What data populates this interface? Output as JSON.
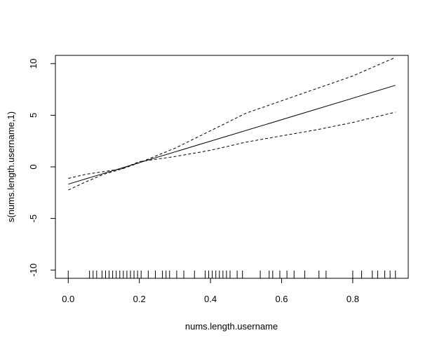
{
  "chart_data": {
    "type": "line",
    "title": "",
    "xlabel": "nums.length.username",
    "ylabel": "s(nums.length.username,1)",
    "xlim": [
      -0.036,
      0.956
    ],
    "ylim": [
      -10.8,
      10.8
    ],
    "xticks": [
      0.0,
      0.2,
      0.4,
      0.6,
      0.8
    ],
    "xtick_labels": [
      "0.0",
      "0.2",
      "0.4",
      "0.6",
      "0.8"
    ],
    "yticks": [
      -10,
      -5,
      0,
      5,
      10
    ],
    "ytick_labels": [
      "-10",
      "-5",
      "0",
      "5",
      "10"
    ],
    "grid": false,
    "legend": "none",
    "series": [
      {
        "style": "solid",
        "x": [
          0.0,
          0.92
        ],
        "y": [
          -1.68,
          7.9
        ]
      },
      {
        "style": "dashed",
        "x": [
          0.0,
          0.05,
          0.1,
          0.15,
          0.2,
          0.3,
          0.4,
          0.5,
          0.6,
          0.7,
          0.8,
          0.92
        ],
        "y": [
          -1.12,
          -0.72,
          -0.46,
          -0.2,
          0.5,
          1.0,
          1.6,
          2.4,
          3.0,
          3.6,
          4.3,
          5.3
        ]
      },
      {
        "style": "dashed",
        "x": [
          0.0,
          0.05,
          0.1,
          0.15,
          0.2,
          0.3,
          0.4,
          0.5,
          0.6,
          0.7,
          0.8,
          0.92
        ],
        "y": [
          -2.25,
          -1.45,
          -0.72,
          -0.22,
          0.4,
          1.8,
          3.5,
          5.2,
          6.4,
          7.6,
          8.8,
          10.6
        ]
      }
    ],
    "rug": [
      0.0,
      0.06,
      0.07,
      0.08,
      0.095,
      0.105,
      0.115,
      0.125,
      0.135,
      0.145,
      0.155,
      0.165,
      0.175,
      0.185,
      0.195,
      0.205,
      0.225,
      0.245,
      0.265,
      0.275,
      0.285,
      0.305,
      0.325,
      0.355,
      0.385,
      0.395,
      0.405,
      0.415,
      0.425,
      0.435,
      0.445,
      0.455,
      0.475,
      0.49,
      0.54,
      0.565,
      0.575,
      0.595,
      0.615,
      0.635,
      0.665,
      0.705,
      0.725,
      0.8,
      0.825,
      0.855,
      0.87,
      0.89,
      0.905,
      0.92
    ],
    "line_color": "#000000"
  }
}
